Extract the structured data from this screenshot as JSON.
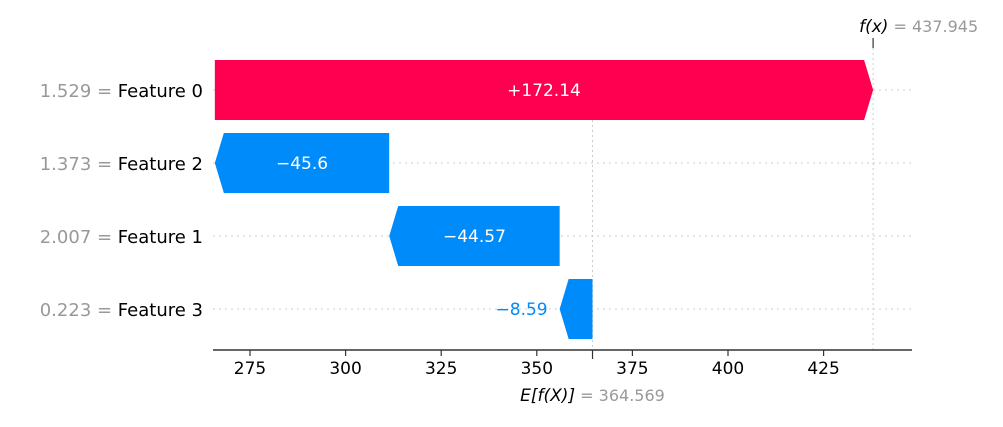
{
  "chart_data": {
    "type": "waterfall",
    "base_value": 364.569,
    "base_value_label": "E[f(X)]",
    "base_value_text": "364.569",
    "output_value": 437.945,
    "output_value_label": "f(x)",
    "output_value_text": "437.945",
    "xlim": [
      262.5,
      447.5
    ],
    "xticks": [
      275,
      300,
      325,
      350,
      375,
      400,
      425
    ],
    "colors": {
      "positive": "#ff0051",
      "negative": "#008bfb",
      "positive_text": "#ffffff",
      "negative_text": "#008bfb",
      "grid": "#cccccc"
    },
    "features": [
      {
        "name": "Feature 0",
        "value": "1.529",
        "contribution": 172.14,
        "label": "+172.14",
        "start": 265.805,
        "end": 437.945,
        "label_inside": true
      },
      {
        "name": "Feature 2",
        "value": "1.373",
        "contribution": -45.6,
        "label": "−45.6",
        "start": 311.405,
        "end": 265.805,
        "label_inside": true
      },
      {
        "name": "Feature 1",
        "value": "2.007",
        "contribution": -44.57,
        "label": "−44.57",
        "start": 355.975,
        "end": 311.405,
        "label_inside": true
      },
      {
        "name": "Feature 3",
        "value": "0.223",
        "contribution": -8.59,
        "label": "−8.59",
        "start": 364.565,
        "end": 355.975,
        "label_inside": false
      }
    ]
  }
}
